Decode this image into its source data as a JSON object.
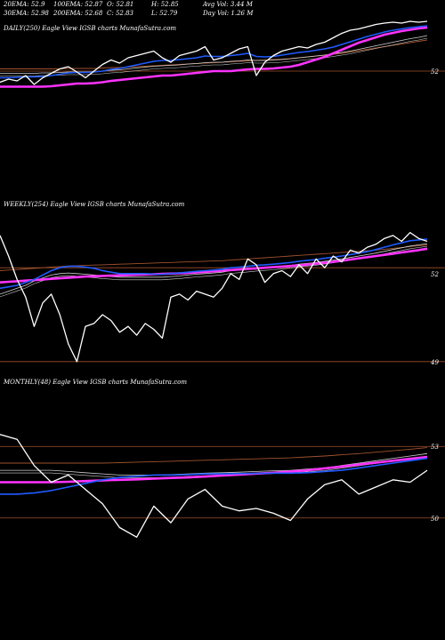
{
  "colors": {
    "background": "#000000",
    "price": "#ffffff",
    "ema_blue": "#1f5bff",
    "ema_magenta": "#ff33ff",
    "ema_thin_white": "#cfcfcf",
    "ema_brown": "#a0522d",
    "level_line": "#a0522d"
  },
  "header": {
    "row1": [
      "20EMA: 52.9",
      "100EMA: 52.87",
      "O: 52.81",
      "H: 52.85",
      "Avg Vol: 3.44 M"
    ],
    "row2": [
      "30EMA: 52.98",
      "200EMA: 52.68",
      "C: 52.83",
      "L: 52.79",
      "Day Vol: 1.26 M"
    ]
  },
  "chart_data": [
    {
      "type": "line",
      "title": "DAILY(250) Eagle  View  IGSB charts MunafaSutra.com",
      "ylim": [
        51.4,
        53.2
      ],
      "yticks": [
        52
      ],
      "levels": [
        52.0
      ],
      "x": [
        0,
        5,
        10,
        15,
        20,
        25,
        30,
        35,
        40,
        45,
        50,
        55,
        60,
        65,
        70,
        75,
        80,
        85,
        90,
        95,
        100,
        105,
        110,
        115,
        120,
        125,
        130,
        135,
        140,
        145,
        150,
        155,
        160,
        165,
        170,
        175,
        180,
        185,
        190,
        195,
        200,
        205,
        210,
        215,
        220,
        225,
        230,
        235,
        240,
        245,
        250
      ],
      "series": [
        {
          "role": "price",
          "values": [
            51.75,
            51.82,
            51.78,
            51.9,
            51.7,
            51.85,
            51.95,
            52.05,
            52.1,
            51.98,
            51.85,
            52.0,
            52.15,
            52.25,
            52.18,
            52.3,
            52.35,
            52.4,
            52.45,
            52.3,
            52.2,
            52.35,
            52.4,
            52.45,
            52.55,
            52.25,
            52.3,
            52.4,
            52.5,
            52.55,
            51.9,
            52.2,
            52.35,
            52.45,
            52.5,
            52.55,
            52.52,
            52.6,
            52.65,
            52.75,
            52.85,
            52.92,
            52.95,
            53.0,
            53.05,
            53.08,
            53.1,
            53.08,
            53.12,
            53.1,
            53.12
          ]
        },
        {
          "role": "ema_blue",
          "values": [
            51.85,
            51.85,
            51.86,
            51.87,
            51.87,
            51.88,
            51.9,
            51.93,
            51.96,
            51.97,
            51.97,
            51.98,
            52.0,
            52.04,
            52.06,
            52.1,
            52.14,
            52.18,
            52.22,
            52.24,
            52.24,
            52.26,
            52.28,
            52.3,
            52.34,
            52.33,
            52.33,
            52.35,
            52.37,
            52.4,
            52.33,
            52.32,
            52.33,
            52.36,
            52.39,
            52.42,
            52.44,
            52.47,
            52.5,
            52.54,
            52.6,
            52.66,
            52.72,
            52.78,
            52.83,
            52.88,
            52.92,
            52.95,
            52.98,
            53.0,
            53.02
          ]
        },
        {
          "role": "ema_thin_white",
          "values": [
            51.95,
            51.95,
            51.95,
            51.95,
            51.95,
            51.96,
            51.96,
            51.97,
            51.98,
            51.98,
            51.98,
            51.99,
            52.0,
            52.02,
            52.03,
            52.05,
            52.07,
            52.09,
            52.11,
            52.12,
            52.13,
            52.14,
            52.16,
            52.17,
            52.19,
            52.2,
            52.2,
            52.22,
            52.23,
            52.25,
            52.24,
            52.24,
            52.25,
            52.26,
            52.28,
            52.3,
            52.32,
            52.34,
            52.36,
            52.39,
            52.42,
            52.45,
            52.49,
            52.53,
            52.57,
            52.61,
            52.65,
            52.69,
            52.73,
            52.76,
            52.8
          ]
        },
        {
          "role": "ema_brown",
          "values": [
            52.05,
            52.05,
            52.05,
            52.05,
            52.05,
            52.05,
            52.05,
            52.05,
            52.06,
            52.06,
            52.06,
            52.06,
            52.07,
            52.08,
            52.08,
            52.09,
            52.1,
            52.11,
            52.12,
            52.13,
            52.14,
            52.15,
            52.16,
            52.17,
            52.18,
            52.19,
            52.2,
            52.21,
            52.22,
            52.23,
            52.24,
            52.25,
            52.26,
            52.27,
            52.28,
            52.3,
            52.32,
            52.34,
            52.36,
            52.38,
            52.4,
            52.43,
            52.46,
            52.49,
            52.52,
            52.55,
            52.58,
            52.61,
            52.64,
            52.67,
            52.7
          ]
        },
        {
          "role": "ema_magenta",
          "values": [
            51.65,
            51.65,
            51.65,
            51.65,
            51.65,
            51.65,
            51.66,
            51.68,
            51.7,
            51.72,
            51.72,
            51.73,
            51.75,
            51.78,
            51.8,
            51.82,
            51.84,
            51.86,
            51.88,
            51.9,
            51.9,
            51.92,
            51.94,
            51.96,
            51.98,
            52.0,
            52.0,
            52.0,
            52.02,
            52.04,
            52.05,
            52.05,
            52.06,
            52.08,
            52.1,
            52.14,
            52.2,
            52.26,
            52.32,
            52.4,
            52.48,
            52.56,
            52.64,
            52.7,
            52.76,
            52.82,
            52.86,
            52.9,
            52.93,
            52.96,
            52.98
          ]
        }
      ]
    },
    {
      "type": "line",
      "title": "WEEKLY(254) Eagle  View  IGSB charts MunafaSutra.com",
      "ylim": [
        48.6,
        53.6
      ],
      "yticks": [
        52,
        49
      ],
      "levels": [
        52.2,
        49.0
      ],
      "x": [
        0,
        5,
        10,
        15,
        20,
        25,
        30,
        35,
        40,
        45,
        50,
        55,
        60,
        65,
        70,
        75,
        80,
        85,
        90,
        95,
        100,
        105,
        110,
        115,
        120,
        125,
        130,
        135,
        140,
        145,
        150,
        155,
        160,
        165,
        170,
        175,
        180,
        185,
        190,
        195,
        200,
        205,
        210,
        215,
        220,
        225,
        230,
        235,
        240,
        245,
        250
      ],
      "series": [
        {
          "role": "price",
          "values": [
            53.3,
            52.6,
            51.8,
            51.2,
            50.2,
            51.0,
            51.3,
            50.6,
            49.6,
            49.0,
            50.2,
            50.3,
            50.6,
            50.4,
            50.0,
            50.2,
            49.9,
            50.3,
            50.1,
            49.8,
            51.2,
            51.3,
            51.1,
            51.4,
            51.3,
            51.2,
            51.5,
            52.0,
            51.8,
            52.5,
            52.3,
            51.7,
            52.0,
            52.1,
            51.9,
            52.3,
            52.0,
            52.5,
            52.2,
            52.6,
            52.4,
            52.8,
            52.7,
            52.9,
            53.0,
            53.2,
            53.3,
            53.1,
            53.4,
            53.2,
            53.1
          ]
        },
        {
          "role": "ema_blue",
          "values": [
            51.5,
            51.55,
            51.6,
            51.7,
            51.8,
            51.95,
            52.1,
            52.2,
            52.25,
            52.25,
            52.22,
            52.18,
            52.1,
            52.05,
            52.0,
            52.0,
            52.0,
            52.0,
            51.98,
            51.98,
            52.0,
            52.02,
            52.05,
            52.08,
            52.1,
            52.12,
            52.15,
            52.2,
            52.22,
            52.25,
            52.28,
            52.3,
            52.32,
            52.35,
            52.38,
            52.42,
            52.45,
            52.48,
            52.52,
            52.56,
            52.6,
            52.65,
            52.7,
            52.75,
            52.82,
            52.9,
            52.98,
            53.05,
            53.12,
            53.15,
            53.18
          ]
        },
        {
          "role": "ema_thin_white",
          "values": [
            51.3,
            51.4,
            51.5,
            51.6,
            51.75,
            51.85,
            51.95,
            52.0,
            52.02,
            52.0,
            51.98,
            51.95,
            51.92,
            51.9,
            51.88,
            51.88,
            51.88,
            51.88,
            51.88,
            51.88,
            51.9,
            51.92,
            51.95,
            51.98,
            52.0,
            52.02,
            52.05,
            52.1,
            52.12,
            52.15,
            52.18,
            52.2,
            52.22,
            52.25,
            52.28,
            52.32,
            52.35,
            52.38,
            52.42,
            52.46,
            52.5,
            52.55,
            52.6,
            52.65,
            52.7,
            52.76,
            52.82,
            52.88,
            52.94,
            52.98,
            53.02
          ]
        },
        {
          "role": "ema_brown",
          "values": [
            52.1,
            52.12,
            52.14,
            52.16,
            52.18,
            52.2,
            52.22,
            52.24,
            52.26,
            52.27,
            52.28,
            52.29,
            52.3,
            52.31,
            52.32,
            52.33,
            52.34,
            52.35,
            52.36,
            52.37,
            52.38,
            52.39,
            52.4,
            52.41,
            52.42,
            52.43,
            52.44,
            52.46,
            52.48,
            52.5,
            52.52,
            52.54,
            52.56,
            52.58,
            52.6,
            52.62,
            52.64,
            52.66,
            52.68,
            52.7,
            52.72,
            52.74,
            52.76,
            52.78,
            52.8,
            52.83,
            52.86,
            52.89,
            52.92,
            52.95,
            52.98
          ]
        },
        {
          "role": "ema_magenta",
          "values": [
            51.7,
            51.72,
            51.74,
            51.76,
            51.78,
            51.8,
            51.82,
            51.84,
            51.86,
            51.88,
            51.9,
            51.91,
            51.92,
            51.93,
            51.94,
            51.95,
            51.96,
            51.97,
            51.98,
            51.99,
            52.0,
            52.01,
            52.02,
            52.04,
            52.06,
            52.08,
            52.1,
            52.12,
            52.14,
            52.16,
            52.18,
            52.2,
            52.22,
            52.24,
            52.26,
            52.28,
            52.31,
            52.34,
            52.37,
            52.4,
            52.44,
            52.48,
            52.52,
            52.56,
            52.6,
            52.64,
            52.68,
            52.72,
            52.76,
            52.8,
            52.85
          ]
        }
      ]
    },
    {
      "type": "line",
      "title": "MONTHLY(48) Eagle  View  IGSB charts MunafaSutra.com",
      "ylim": [
        48.8,
        54.2
      ],
      "yticks": [
        53,
        50
      ],
      "levels": [
        53.0,
        50.0
      ],
      "x": [
        0,
        2,
        4,
        6,
        8,
        10,
        12,
        14,
        16,
        18,
        20,
        22,
        24,
        26,
        28,
        30,
        32,
        34,
        36,
        38,
        40,
        42,
        44,
        46,
        48,
        50
      ],
      "series": [
        {
          "role": "price",
          "values": [
            53.5,
            53.3,
            52.2,
            51.5,
            51.8,
            51.2,
            50.6,
            49.6,
            49.2,
            50.5,
            49.8,
            50.8,
            51.2,
            50.5,
            50.3,
            50.4,
            50.2,
            49.9,
            50.8,
            51.4,
            51.6,
            51.0,
            51.3,
            51.6,
            51.5,
            52.0
          ]
        },
        {
          "role": "ema_blue",
          "values": [
            51.0,
            51.0,
            51.05,
            51.15,
            51.3,
            51.45,
            51.6,
            51.7,
            51.75,
            51.8,
            51.8,
            51.82,
            51.85,
            51.85,
            51.86,
            51.87,
            51.88,
            51.88,
            51.9,
            51.95,
            52.0,
            52.1,
            52.2,
            52.3,
            52.4,
            52.5
          ]
        },
        {
          "role": "ema_thin_white",
          "values": [
            52.0,
            52.0,
            52.0,
            52.0,
            51.95,
            51.9,
            51.85,
            51.8,
            51.8,
            51.8,
            51.82,
            51.85,
            51.88,
            51.9,
            51.92,
            51.95,
            51.98,
            52.0,
            52.05,
            52.1,
            52.2,
            52.3,
            52.4,
            52.5,
            52.6,
            52.7
          ]
        },
        {
          "role": "ema_brown",
          "values": [
            52.3,
            52.3,
            52.3,
            52.3,
            52.3,
            52.3,
            52.3,
            52.32,
            52.34,
            52.36,
            52.38,
            52.4,
            52.42,
            52.44,
            52.46,
            52.48,
            52.5,
            52.52,
            52.56,
            52.6,
            52.65,
            52.7,
            52.76,
            52.82,
            52.88,
            52.95
          ]
        },
        {
          "role": "ema_magenta",
          "values": [
            51.5,
            51.5,
            51.5,
            51.5,
            51.52,
            51.55,
            51.58,
            51.6,
            51.62,
            51.65,
            51.68,
            51.7,
            51.74,
            51.78,
            51.82,
            51.86,
            51.9,
            51.95,
            52.0,
            52.08,
            52.16,
            52.24,
            52.32,
            52.4,
            52.48,
            52.56
          ]
        }
      ]
    }
  ]
}
